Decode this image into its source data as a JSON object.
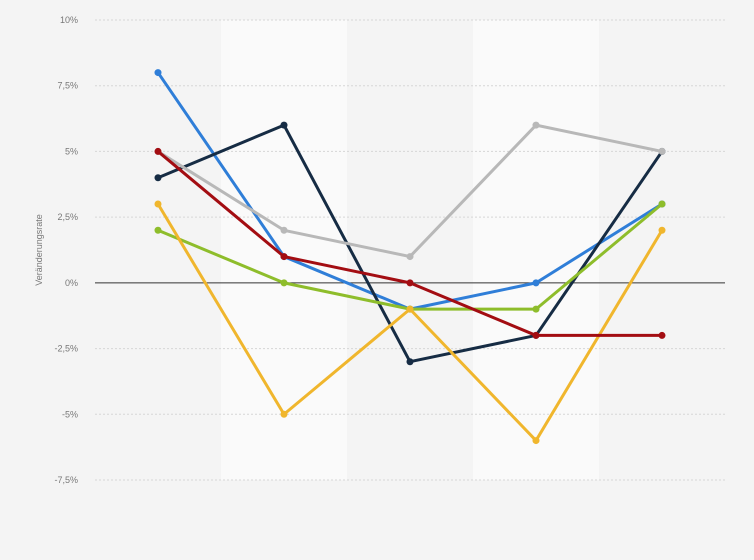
{
  "chart_data": {
    "type": "line",
    "title": "",
    "xlabel": "",
    "ylabel": "Veränderungsrate",
    "ylim": [
      -7.5,
      10
    ],
    "yticks": [
      {
        "value": 10,
        "label": "10%"
      },
      {
        "value": 7.5,
        "label": "7,5%"
      },
      {
        "value": 5,
        "label": "5%"
      },
      {
        "value": 2.5,
        "label": "2,5%"
      },
      {
        "value": 0,
        "label": "0%"
      },
      {
        "value": -2.5,
        "label": "-2,5%"
      },
      {
        "value": -5,
        "label": "-5%"
      },
      {
        "value": -7.5,
        "label": "-7,5%"
      }
    ],
    "point_count": 5,
    "grid": true,
    "legend": "none",
    "series": [
      {
        "color": "#2f7ed8",
        "values": [
          8,
          1,
          -1,
          0,
          3
        ]
      },
      {
        "color": "#162c44",
        "values": [
          4,
          6,
          -3,
          -2,
          5
        ]
      },
      {
        "color": "#b8b8b8",
        "values": [
          5,
          2,
          1,
          6,
          5
        ]
      },
      {
        "color": "#8ebd2b",
        "values": [
          2,
          0,
          -1,
          -1,
          3
        ]
      },
      {
        "color": "#f0b62d",
        "values": [
          3,
          -5,
          -1,
          -6,
          2
        ]
      },
      {
        "color": "#a30d12",
        "values": [
          5,
          1,
          0,
          -2,
          -2
        ]
      }
    ]
  }
}
